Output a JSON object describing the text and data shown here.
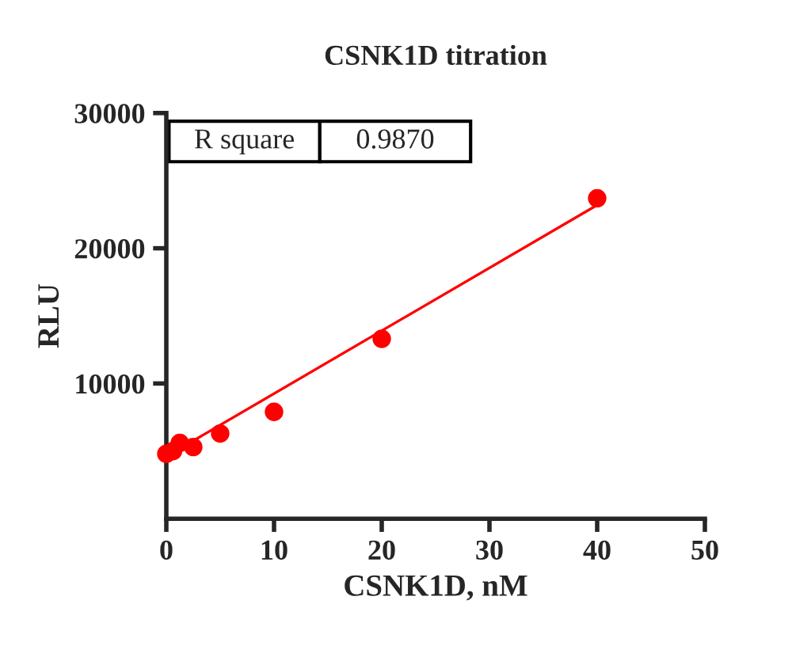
{
  "chart_data": {
    "type": "scatter",
    "title": "CSNK1D titration",
    "xlabel": "CSNK1D, nM",
    "ylabel": "RLU",
    "x": [
      0,
      0.625,
      1.25,
      2.5,
      5,
      10,
      20,
      40
    ],
    "series": [
      {
        "color": "#ff0000",
        "marker": "circle",
        "values": [
          4800,
          5000,
          5600,
          5300,
          6300,
          7900,
          13300,
          23700
        ]
      },
      {
        "type": "line",
        "color": "#ff0000",
        "marker": "none",
        "x": [
          0,
          40
        ],
        "values": [
          4600,
          23200
        ]
      }
    ],
    "xlim": [
      0,
      50
    ],
    "xticks": [
      0,
      10,
      20,
      30,
      40,
      50
    ],
    "ylim": [
      0,
      30000
    ],
    "yticks": [
      10000,
      20000,
      30000
    ],
    "grid": false,
    "legend": false,
    "annotations": [
      "R square",
      "0.9870"
    ]
  }
}
